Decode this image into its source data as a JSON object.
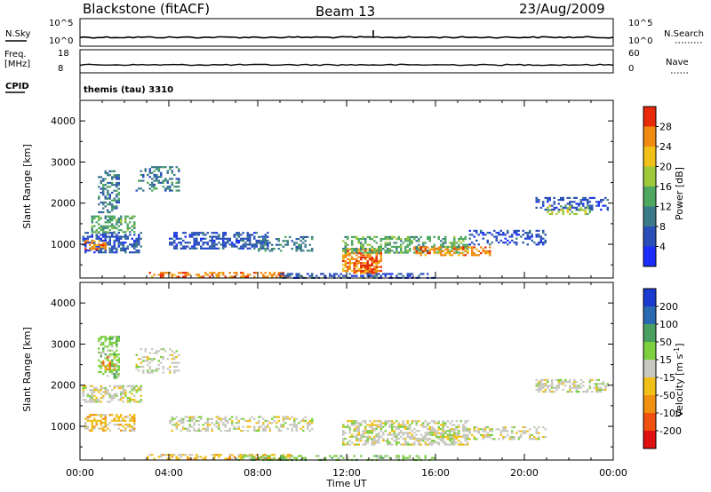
{
  "header": {
    "station": "Blackstone (fitACF)",
    "beam": "Beam 13",
    "date": "23/Aug/2009"
  },
  "strips": {
    "nsky_label": "N.Sky",
    "nsky_ticks": [
      "10^5",
      "10^0"
    ],
    "nsearch_label": "N.Search",
    "nsearch_ticks": [
      "10^5",
      "10^0"
    ],
    "freq_label": "Freq.",
    "freq_unit": "[MHz]",
    "freq_ticks": [
      "18",
      "8"
    ],
    "nave_label": "Nave",
    "nave_ticks": [
      "60",
      "0"
    ],
    "cpid_label": "CPID",
    "cpid_value": "themis (tau) 3310"
  },
  "chart_data": [
    {
      "type": "heatmap",
      "name": "power-panel",
      "quantity": "Power",
      "ylabel": "Slant Range [km]",
      "yticks": [
        1000,
        2000,
        3000,
        4000
      ],
      "ylim": [
        180,
        4500
      ],
      "x_ticks": [
        "00:00",
        "04:00",
        "08:00",
        "12:00",
        "16:00",
        "20:00",
        "00:00"
      ],
      "xlim_hours": [
        0,
        24
      ],
      "colorbar": {
        "label": "Power [dB]",
        "tick_labels": [
          "4",
          "8",
          "12",
          "16",
          "20",
          "24",
          "28"
        ],
        "colors": [
          "#1a2fff",
          "#2a4fb8",
          "#3a7a8a",
          "#4ea860",
          "#9cc83a",
          "#f0c018",
          "#f08a10",
          "#e82a0a"
        ]
      },
      "scatter_regions": [
        {
          "t": [
            0.1,
            2.8
          ],
          "r": [
            800,
            1300
          ],
          "color_index": 1,
          "density": 0.55
        },
        {
          "t": [
            0.5,
            2.5
          ],
          "r": [
            1300,
            1700
          ],
          "color_index": 3,
          "density": 0.5
        },
        {
          "t": [
            0.8,
            1.8
          ],
          "r": [
            1800,
            2800
          ],
          "color_index": 2,
          "density": 0.45
        },
        {
          "t": [
            0.2,
            1.2
          ],
          "r": [
            900,
            1100
          ],
          "color_index": 6,
          "density": 0.5
        },
        {
          "t": [
            2.5,
            4.5
          ],
          "r": [
            2300,
            2900
          ],
          "color_index": 2,
          "density": 0.35
        },
        {
          "t": [
            4.0,
            8.5
          ],
          "r": [
            880,
            1300
          ],
          "color_index": 1,
          "density": 0.55
        },
        {
          "t": [
            3.0,
            9.5
          ],
          "r": [
            230,
            330
          ],
          "color_index": 6,
          "density": 0.5
        },
        {
          "t": [
            8.0,
            10.5
          ],
          "r": [
            850,
            1200
          ],
          "color_index": 2,
          "density": 0.4
        },
        {
          "t": [
            11.8,
            13.6
          ],
          "r": [
            300,
            900
          ],
          "color_index": 6,
          "density": 0.6
        },
        {
          "t": [
            12.6,
            13.4
          ],
          "r": [
            300,
            700
          ],
          "color_index": 7,
          "density": 0.6
        },
        {
          "t": [
            11.8,
            17.5
          ],
          "r": [
            800,
            1200
          ],
          "color_index": 3,
          "density": 0.5
        },
        {
          "t": [
            15.0,
            18.5
          ],
          "r": [
            750,
            950
          ],
          "color_index": 6,
          "density": 0.45
        },
        {
          "t": [
            17.5,
            21.0
          ],
          "r": [
            1000,
            1350
          ],
          "color_index": 1,
          "density": 0.4
        },
        {
          "t": [
            20.5,
            23.8
          ],
          "r": [
            1850,
            2150
          ],
          "color_index": 1,
          "density": 0.45
        },
        {
          "t": [
            21.0,
            23.0
          ],
          "r": [
            1750,
            1950
          ],
          "color_index": 4,
          "density": 0.35
        },
        {
          "t": [
            9.0,
            16.0
          ],
          "r": [
            200,
            300
          ],
          "color_index": 1,
          "density": 0.4
        }
      ]
    },
    {
      "type": "heatmap",
      "name": "velocity-panel",
      "quantity": "Velocity",
      "ylabel": "Slant Range [km]",
      "yticks": [
        1000,
        2000,
        3000,
        4000
      ],
      "ylim": [
        180,
        4500
      ],
      "x_ticks": [
        "00:00",
        "04:00",
        "08:00",
        "12:00",
        "16:00",
        "20:00",
        "00:00"
      ],
      "xlabel": "Time UT",
      "xlim_hours": [
        0,
        24
      ],
      "colorbar": {
        "label": "Velocity [m s",
        "label_superscript": "-1",
        "label_close": "]",
        "tick_labels": [
          "200",
          "100",
          "50",
          "15",
          "-15",
          "-50",
          "-100",
          "-200"
        ],
        "colors": [
          "#1a3ad0",
          "#2a6ab0",
          "#4aa060",
          "#7cd040",
          "#c8c8c0",
          "#f0c018",
          "#f09010",
          "#f05010",
          "#e01010"
        ]
      },
      "scatter_regions": [
        {
          "t": [
            0.1,
            2.8
          ],
          "r": [
            1600,
            2000
          ],
          "color_index": 4,
          "density": 0.55
        },
        {
          "t": [
            0.2,
            2.5
          ],
          "r": [
            900,
            1300
          ],
          "color_index": 5,
          "density": 0.5
        },
        {
          "t": [
            0.8,
            1.8
          ],
          "r": [
            2200,
            3200
          ],
          "color_index": 3,
          "density": 0.45
        },
        {
          "t": [
            1.0,
            1.6
          ],
          "r": [
            2400,
            2700
          ],
          "color_index": 6,
          "density": 0.4
        },
        {
          "t": [
            2.5,
            4.5
          ],
          "r": [
            2300,
            2900
          ],
          "color_index": 4,
          "density": 0.3
        },
        {
          "t": [
            4.0,
            10.5
          ],
          "r": [
            880,
            1250
          ],
          "color_index": 4,
          "density": 0.45
        },
        {
          "t": [
            3.0,
            9.5
          ],
          "r": [
            230,
            330
          ],
          "color_index": 5,
          "density": 0.5
        },
        {
          "t": [
            7.0,
            10.0
          ],
          "r": [
            200,
            300
          ],
          "color_index": 3,
          "density": 0.4
        },
        {
          "t": [
            11.8,
            17.5
          ],
          "r": [
            550,
            1150
          ],
          "color_index": 4,
          "density": 0.55
        },
        {
          "t": [
            15.5,
            21.0
          ],
          "r": [
            700,
            1000
          ],
          "color_index": 4,
          "density": 0.45
        },
        {
          "t": [
            20.5,
            23.8
          ],
          "r": [
            1850,
            2150
          ],
          "color_index": 4,
          "density": 0.45
        },
        {
          "t": [
            9.0,
            16.0
          ],
          "r": [
            200,
            300
          ],
          "color_index": 3,
          "density": 0.35
        }
      ]
    }
  ]
}
